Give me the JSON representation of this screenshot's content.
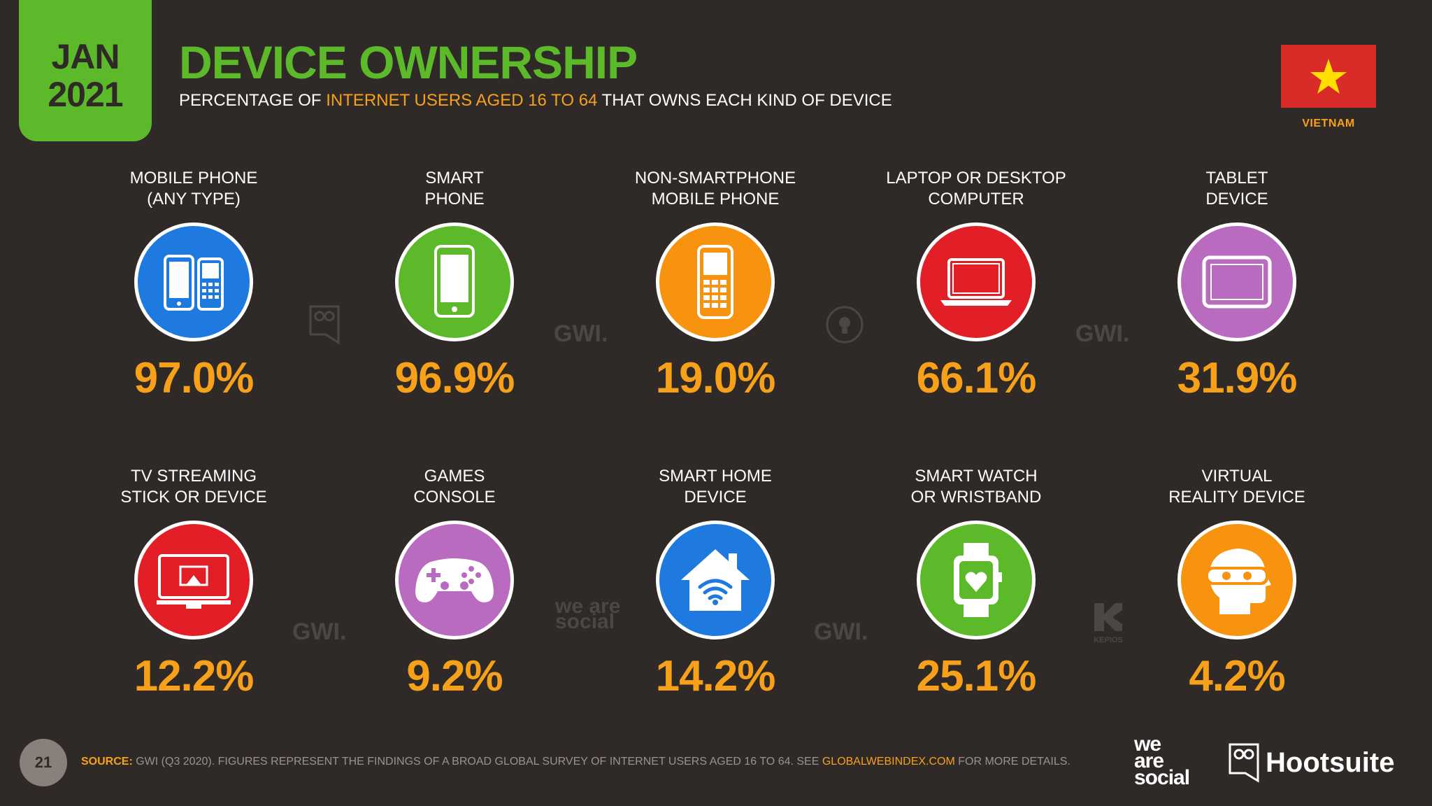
{
  "header": {
    "date_month": "JAN",
    "date_year": "2021",
    "title": "DEVICE OWNERSHIP",
    "subtitle_pre": "PERCENTAGE OF ",
    "subtitle_highlight": "INTERNET USERS AGED 16 TO 64",
    "subtitle_post": " THAT OWNS EACH KIND OF DEVICE",
    "country": "VIETNAM"
  },
  "chart_data": {
    "type": "table",
    "categories": [
      "MOBILE PHONE\n(ANY TYPE)",
      "SMART\nPHONE",
      "NON-SMARTPHONE\nMOBILE PHONE",
      "LAPTOP OR DESKTOP\nCOMPUTER",
      "TABLET\nDEVICE",
      "TV STREAMING\nSTICK OR DEVICE",
      "GAMES\nCONSOLE",
      "SMART HOME\nDEVICE",
      "SMART WATCH\nOR WRISTBAND",
      "VIRTUAL\nREALITY DEVICE"
    ],
    "values": [
      97.0,
      96.9,
      19.0,
      66.1,
      31.9,
      12.2,
      9.2,
      14.2,
      25.1,
      4.2
    ],
    "value_labels": [
      "97.0%",
      "96.9%",
      "19.0%",
      "66.1%",
      "31.9%",
      "12.2%",
      "9.2%",
      "14.2%",
      "25.1%",
      "4.2%"
    ],
    "icons": [
      "mobile-phones-icon",
      "smartphone-icon",
      "feature-phone-icon",
      "laptop-icon",
      "tablet-icon",
      "tv-streaming-icon",
      "gamepad-icon",
      "smart-home-icon",
      "smartwatch-icon",
      "vr-headset-icon"
    ],
    "circle_colors": [
      "#1f7ae0",
      "#5cba2a",
      "#f7930e",
      "#e21f26",
      "#b96bc0",
      "#e21f26",
      "#b96bc0",
      "#1f7ae0",
      "#5cba2a",
      "#f7930e"
    ]
  },
  "watermarks": [
    "GWI.",
    "GWI.",
    "GWI.",
    "GWI.",
    "we are social",
    "KEPIOS"
  ],
  "footer": {
    "page_number": "21",
    "source_label": "SOURCE:",
    "source_text": " GWI (Q3 2020). FIGURES REPRESENT THE FINDINGS OF A BROAD GLOBAL SURVEY OF INTERNET USERS AGED 16 TO 64. SEE ",
    "source_link": "GLOBALWEBINDEX.COM",
    "source_end": " FOR MORE DETAILS.",
    "logo_was": "we\nare\nsocial",
    "logo_hs": "Hootsuite"
  },
  "colors": {
    "background": "#2f2a28",
    "accent_green": "#5cba2a",
    "accent_orange": "#f7a11a"
  }
}
